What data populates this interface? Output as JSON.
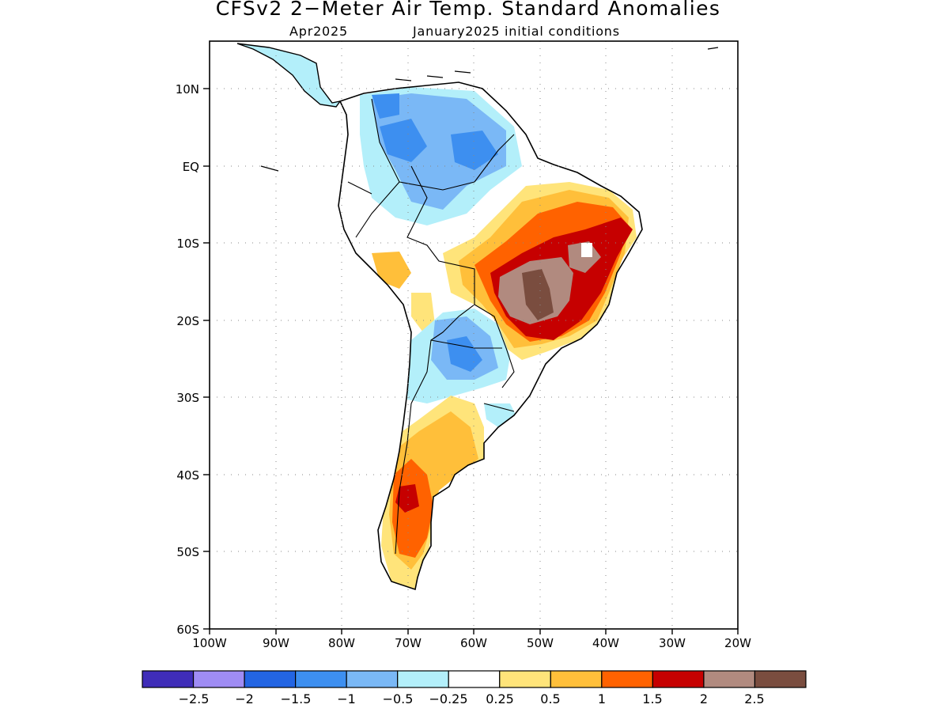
{
  "header": {
    "title": "CFSv2 2−Meter Air Temp. Standard Anomalies",
    "month": "Apr2025",
    "init": "January2025 initial conditions"
  },
  "axes": {
    "lat_labels": [
      "10N",
      "EQ",
      "10S",
      "20S",
      "30S",
      "40S",
      "50S",
      "60S"
    ],
    "lon_labels": [
      "100W",
      "90W",
      "80W",
      "70W",
      "60W",
      "50W",
      "40W",
      "30W",
      "20W"
    ]
  },
  "colorbar": {
    "colors": [
      "#3f2db8",
      "#9f8cf4",
      "#2365e3",
      "#3d8ff0",
      "#7ab8f6",
      "#b3effa",
      "#ffffff",
      "#ffe47a",
      "#ffbf3a",
      "#ff6200",
      "#c60000",
      "#b18a7f",
      "#7a4d3f"
    ],
    "labels": [
      "−2.5",
      "−2",
      "−1.5",
      "−1",
      "−0.5",
      "−0.25",
      "0.25",
      "0.5",
      "1",
      "1.5",
      "2",
      "2.5"
    ]
  }
}
